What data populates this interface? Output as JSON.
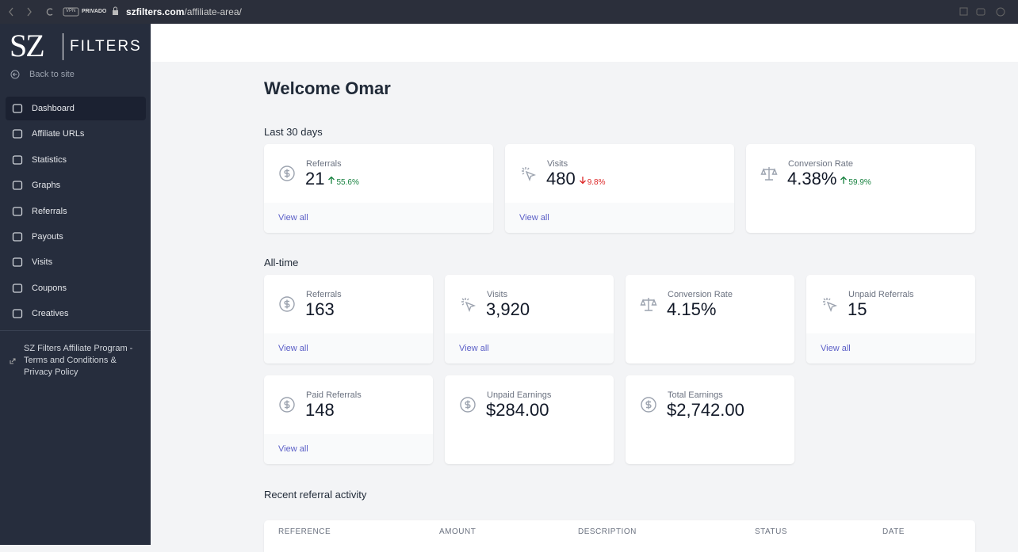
{
  "browser": {
    "vpn": "VPN",
    "vpn_name": "PRIVADO",
    "url_host": "szfilters.com",
    "url_path": "/affiliate-area/"
  },
  "sidebar": {
    "logo_left": "SZ",
    "logo_right": "FILTERS",
    "back": "Back to site",
    "nav": [
      "Dashboard",
      "Affiliate URLs",
      "Statistics",
      "Graphs",
      "Referrals",
      "Payouts",
      "Visits",
      "Coupons",
      "Creatives"
    ],
    "active": "Dashboard",
    "footer_link": "SZ Filters Affiliate Program - Terms and Conditions & Privacy Policy"
  },
  "main": {
    "welcome": "Welcome Omar",
    "last_30_days": {
      "heading": "Last 30 days",
      "cards": [
        {
          "icon": "dollar",
          "label": "Referrals",
          "value": "21",
          "change": "55.6%",
          "trend": "up",
          "link": "View all"
        },
        {
          "icon": "cursor",
          "label": "Visits",
          "value": "480",
          "change": "9.8%",
          "trend": "down",
          "link": "View all"
        },
        {
          "icon": "scale",
          "label": "Conversion Rate",
          "value": "4.38%",
          "change": "59.9%",
          "trend": "up"
        }
      ]
    },
    "all_time": {
      "heading": "All-time",
      "cards": [
        {
          "icon": "dollar",
          "label": "Referrals",
          "value": "163",
          "link": "View all"
        },
        {
          "icon": "cursor",
          "label": "Visits",
          "value": "3,920",
          "link": "View all"
        },
        {
          "icon": "scale",
          "label": "Conversion Rate",
          "value": "4.15%"
        },
        {
          "icon": "cursor",
          "label": "Unpaid Referrals",
          "value": "15",
          "link": "View all"
        },
        {
          "icon": "dollar",
          "label": "Paid Referrals",
          "value": "148",
          "link": "View all"
        },
        {
          "icon": "dollar",
          "label": "Unpaid Earnings",
          "value": "$284.00"
        },
        {
          "icon": "dollar",
          "label": "Total Earnings",
          "value": "$2,742.00"
        }
      ]
    },
    "recent": {
      "heading": "Recent referral activity",
      "columns": [
        "REFERENCE",
        "AMOUNT",
        "DESCRIPTION",
        "STATUS",
        "DATE"
      ]
    }
  }
}
